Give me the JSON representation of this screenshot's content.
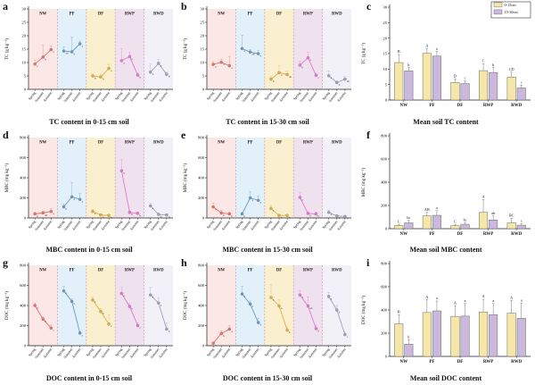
{
  "style": {
    "axis": "#222222",
    "divider": "#c9a0a8",
    "bar_border": "#666666",
    "bar_colors": [
      "#f6e7a9",
      "#cbb9dd"
    ],
    "region_colors": {
      "NW": "#fbe7e5",
      "PF": "#e2f0f9",
      "DF": "#faefce",
      "RWP": "#f0e1ee",
      "RWD": "#f1f1f7"
    },
    "group_colors": {
      "NW": "#e2726e",
      "PF": "#6b9bc3",
      "DF": "#ddaf4a",
      "RWP": "#e478cf",
      "RWD": "#9fa3b8"
    }
  },
  "chart_data": [
    {
      "type": "line",
      "letter": "a",
      "caption": "TC content in 0-15 cm soil",
      "ylabel": "TC (g kg⁻¹)",
      "ylim": [
        0,
        30
      ],
      "ytick_step": 5,
      "grid": false,
      "x_labels": [
        "Spring",
        "Summer",
        "Autumn"
      ],
      "groups": [
        {
          "name": "NW",
          "values": [
            9.4,
            12.0,
            14.8
          ],
          "errors": [
            1.5,
            4.5,
            1.5
          ],
          "point_labels": [
            "c",
            "b",
            "a"
          ]
        },
        {
          "name": "PF",
          "values": [
            14.3,
            14.0,
            17.0
          ],
          "errors": [
            1.5,
            5.5,
            1.0
          ],
          "point_labels": [
            "ab",
            "b",
            "a"
          ]
        },
        {
          "name": "DF",
          "values": [
            5.0,
            4.6,
            7.8
          ],
          "errors": [
            0.8,
            0.8,
            1.5
          ],
          "point_labels": [
            "b",
            "b",
            "a"
          ]
        },
        {
          "name": "RWP",
          "values": [
            10.7,
            12.2,
            5.3
          ],
          "errors": [
            4.5,
            1.5,
            0.8
          ],
          "point_labels": [
            "a",
            "a",
            "b"
          ]
        },
        {
          "name": "RWD",
          "values": [
            6.4,
            9.7,
            5.6
          ],
          "errors": [
            3.0,
            1.5,
            0.8
          ],
          "point_labels": [
            "b",
            "a",
            "b"
          ]
        }
      ]
    },
    {
      "type": "line",
      "letter": "b",
      "caption": "TC content in 15-30 cm soil",
      "ylabel": "TC (g kg⁻¹)",
      "ylim": [
        0,
        30
      ],
      "ytick_step": 5,
      "grid": false,
      "x_labels": [
        "Spring",
        "Summer",
        "Autumn"
      ],
      "groups": [
        {
          "name": "NW",
          "values": [
            9.3,
            10.1,
            8.8
          ],
          "errors": [
            1.0,
            1.2,
            3.5
          ],
          "point_labels": [
            "a",
            "a",
            "a"
          ]
        },
        {
          "name": "PF",
          "values": [
            15.2,
            13.9,
            13.3
          ],
          "errors": [
            5.0,
            1.0,
            1.2
          ],
          "point_labels": [
            "a",
            "ab",
            "b"
          ]
        },
        {
          "name": "DF",
          "values": [
            3.8,
            6.2,
            5.5
          ],
          "errors": [
            1.0,
            2.8,
            1.2
          ],
          "point_labels": [
            "b",
            "a",
            "ab"
          ]
        },
        {
          "name": "RWP",
          "values": [
            9.0,
            11.8,
            5.2
          ],
          "errors": [
            1.5,
            2.0,
            0.8
          ],
          "point_labels": [
            "b",
            "a",
            "c"
          ]
        },
        {
          "name": "RWD",
          "values": [
            5.1,
            2.5,
            3.8
          ],
          "errors": [
            1.8,
            0.7,
            1.0
          ],
          "point_labels": [
            "a",
            "b",
            "ab"
          ]
        }
      ]
    },
    {
      "type": "bar",
      "letter": "c",
      "caption": "Mean soil TC content",
      "ylabel": "TC (g kg⁻¹)",
      "ylim": [
        0,
        30
      ],
      "ytick_step": 5,
      "grid": false,
      "categories": [
        "NW",
        "PF",
        "DF",
        "RWP",
        "RWD"
      ],
      "legend": [
        "0-15cm",
        "15-30cm"
      ],
      "series": [
        {
          "name": "0-15cm",
          "values": [
            12.1,
            15.1,
            5.7,
            9.5,
            7.4
          ],
          "errors": [
            2.6,
            1.6,
            1.1,
            2.2,
            1.6
          ],
          "labels": [
            "B",
            "A",
            "D",
            "C",
            "CD"
          ]
        },
        {
          "name": "15-30cm",
          "values": [
            9.4,
            14.2,
            5.3,
            8.9,
            3.9
          ],
          "errors": [
            1.1,
            1.5,
            0.9,
            1.6,
            0.9
          ],
          "labels": [
            "b",
            "a",
            "c",
            "b",
            "c"
          ]
        }
      ]
    },
    {
      "type": "line",
      "letter": "d",
      "caption": "MBC content in 0-15 cm soil",
      "ylabel": "MBC (mg kg⁻¹)",
      "ylim": [
        0,
        800
      ],
      "ytick_step": 200,
      "grid": false,
      "x_labels": [
        "Spring",
        "Summer",
        "Autumn"
      ],
      "groups": [
        {
          "name": "NW",
          "values": [
            40,
            50,
            65
          ],
          "errors": [
            15,
            15,
            25
          ],
          "point_labels": [
            "b",
            "ab",
            "a"
          ]
        },
        {
          "name": "PF",
          "values": [
            110,
            210,
            185
          ],
          "errors": [
            30,
            140,
            60
          ],
          "point_labels": [
            "b",
            "a",
            "a"
          ]
        },
        {
          "name": "DF",
          "values": [
            65,
            30,
            25
          ],
          "errors": [
            20,
            10,
            10
          ],
          "point_labels": [
            "a",
            "b",
            "b"
          ]
        },
        {
          "name": "RWP",
          "values": [
            470,
            55,
            45
          ],
          "errors": [
            110,
            15,
            15
          ],
          "point_labels": [
            "a",
            "b",
            "b"
          ]
        },
        {
          "name": "RWD",
          "values": [
            120,
            35,
            30
          ],
          "errors": [
            25,
            10,
            10
          ],
          "point_labels": [
            "a",
            "b",
            "b"
          ]
        }
      ]
    },
    {
      "type": "line",
      "letter": "e",
      "caption": "MBC content in 15-30 cm soil",
      "ylabel": "MBC (mg kg⁻¹)",
      "ylim": [
        0,
        800
      ],
      "ytick_step": 200,
      "grid": false,
      "x_labels": [
        "Spring",
        "Summer",
        "Autumn"
      ],
      "groups": [
        {
          "name": "NW",
          "values": [
            110,
            50,
            40
          ],
          "errors": [
            40,
            25,
            15
          ],
          "point_labels": [
            "a",
            "b",
            "b"
          ]
        },
        {
          "name": "PF",
          "values": [
            40,
            200,
            175
          ],
          "errors": [
            15,
            60,
            45
          ],
          "point_labels": [
            "b",
            "a",
            "a"
          ]
        },
        {
          "name": "DF",
          "values": [
            95,
            25,
            25
          ],
          "errors": [
            30,
            10,
            10
          ],
          "point_labels": [
            "a",
            "b",
            "b"
          ]
        },
        {
          "name": "RWP",
          "values": [
            205,
            45,
            40
          ],
          "errors": [
            45,
            15,
            15
          ],
          "point_labels": [
            "a",
            "b",
            "b"
          ]
        },
        {
          "name": "RWD",
          "values": [
            55,
            20,
            15
          ],
          "errors": [
            20,
            10,
            8
          ],
          "point_labels": [
            "a",
            "b",
            "b"
          ]
        }
      ]
    },
    {
      "type": "bar",
      "letter": "f",
      "caption": "Mean soil MBC content",
      "ylabel": "MBC (mg kg⁻¹)",
      "ylim": [
        0,
        800
      ],
      "ytick_step": 200,
      "grid": false,
      "categories": [
        "NW",
        "PF",
        "DF",
        "RWP",
        "RWD"
      ],
      "legend": null,
      "series": [
        {
          "name": "0-15cm",
          "values": [
            28,
            110,
            25,
            140,
            50
          ],
          "errors": [
            10,
            30,
            10,
            110,
            40
          ],
          "labels": [
            "C",
            "AB",
            "C",
            "A",
            "BC"
          ]
        },
        {
          "name": "15-30cm",
          "values": [
            50,
            115,
            38,
            75,
            30
          ],
          "errors": [
            20,
            40,
            15,
            35,
            15
          ],
          "labels": [
            "bc",
            "a",
            "bc",
            "ab",
            "c"
          ]
        }
      ]
    },
    {
      "type": "line",
      "letter": "g",
      "caption": "DOC content in 0-15 cm soil",
      "ylabel": "DOC (mg kg⁻¹)",
      "ylim": [
        0,
        800
      ],
      "ytick_step": 200,
      "grid": false,
      "x_labels": [
        "Spring",
        "Summer",
        "Autumn"
      ],
      "groups": [
        {
          "name": "NW",
          "values": [
            400,
            265,
            175
          ],
          "errors": [
            25,
            20,
            30
          ],
          "point_labels": [
            "a",
            "b",
            "c"
          ]
        },
        {
          "name": "PF",
          "values": [
            545,
            440,
            125
          ],
          "errors": [
            45,
            25,
            15
          ],
          "point_labels": [
            "a",
            "b",
            "c"
          ]
        },
        {
          "name": "DF",
          "values": [
            455,
            340,
            215
          ],
          "errors": [
            30,
            30,
            90
          ],
          "point_labels": [
            "a",
            "b",
            "c"
          ]
        },
        {
          "name": "RWP",
          "values": [
            520,
            390,
            200
          ],
          "errors": [
            60,
            30,
            25
          ],
          "point_labels": [
            "a",
            "b",
            "c"
          ]
        },
        {
          "name": "RWD",
          "values": [
            505,
            425,
            165
          ],
          "errors": [
            75,
            50,
            60
          ],
          "point_labels": [
            "a",
            "a",
            "b"
          ]
        }
      ]
    },
    {
      "type": "line",
      "letter": "h",
      "caption": "DOC content in 15-30 cm soil",
      "ylabel": "DOC (mg kg⁻¹)",
      "ylim": [
        0,
        800
      ],
      "ytick_step": 200,
      "grid": false,
      "x_labels": [
        "Spring",
        "Summer",
        "Autumn"
      ],
      "groups": [
        {
          "name": "NW",
          "values": [
            25,
            120,
            165
          ],
          "errors": [
            10,
            25,
            35
          ],
          "point_labels": [
            "c",
            "b",
            "a"
          ]
        },
        {
          "name": "PF",
          "values": [
            515,
            415,
            230
          ],
          "errors": [
            75,
            30,
            40
          ],
          "point_labels": [
            "a",
            "a",
            "b"
          ]
        },
        {
          "name": "DF",
          "values": [
            480,
            395,
            155
          ],
          "errors": [
            130,
            60,
            30
          ],
          "point_labels": [
            "a",
            "a",
            "b"
          ]
        },
        {
          "name": "RWP",
          "values": [
            505,
            395,
            170
          ],
          "errors": [
            45,
            90,
            35
          ],
          "point_labels": [
            "a",
            "ab",
            "b"
          ]
        },
        {
          "name": "RWD",
          "values": [
            490,
            355,
            110
          ],
          "errors": [
            40,
            45,
            30
          ],
          "point_labels": [
            "a",
            "b",
            "c"
          ]
        }
      ]
    },
    {
      "type": "bar",
      "letter": "i",
      "caption": "Mean soil DOC content",
      "ylabel": "DOC (mg kg⁻¹)",
      "ylim": [
        0,
        800
      ],
      "ytick_step": 200,
      "grid": false,
      "categories": [
        "NW",
        "PF",
        "DF",
        "RWP",
        "RWD"
      ],
      "legend": null,
      "series": [
        {
          "name": "0-15cm",
          "values": [
            280,
            378,
            345,
            382,
            372
          ],
          "errors": [
            80,
            110,
            90,
            110,
            110
          ],
          "labels": [
            "B",
            "A",
            "A",
            "A",
            "A"
          ]
        },
        {
          "name": "15-30cm",
          "values": [
            105,
            392,
            347,
            360,
            328
          ],
          "errors": [
            40,
            85,
            110,
            95,
            130
          ],
          "labels": [
            "b",
            "a",
            "a",
            "a",
            "a"
          ]
        }
      ]
    }
  ]
}
